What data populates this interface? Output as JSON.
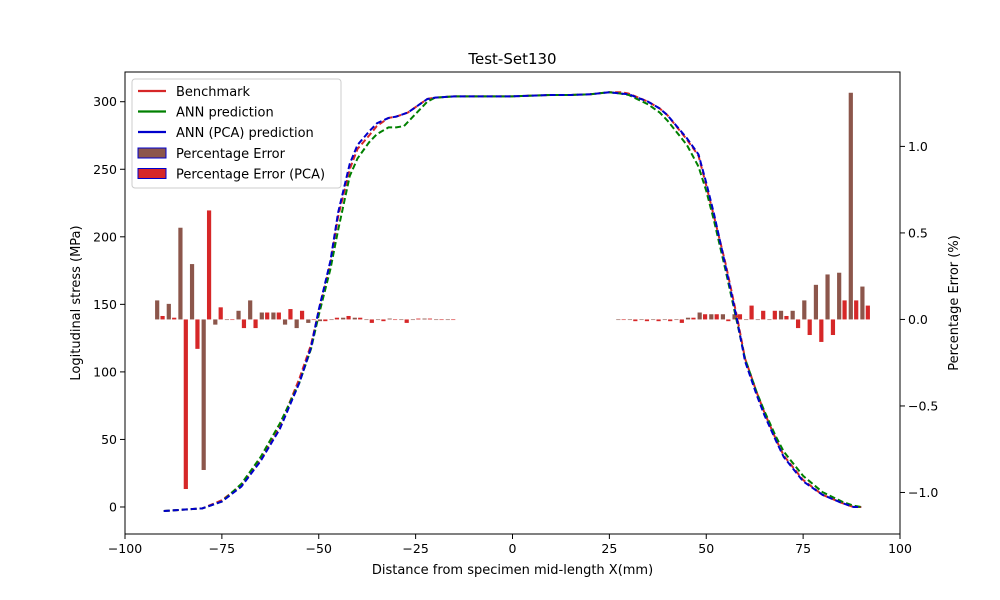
{
  "chart_data": {
    "type": "line",
    "title": "Test-Set130",
    "xlabel": "Distance from specimen mid-length X(mm)",
    "ylabel": "Logitudinal stress (MPa)",
    "y2label": "Percentage Error (%)",
    "xlim": [
      -100,
      100
    ],
    "ylim": [
      -20,
      322
    ],
    "y2lim": [
      -1.24,
      1.43
    ],
    "grid": false,
    "legend_position": "upper-left",
    "x_ticks": [
      -100,
      -75,
      -50,
      -25,
      0,
      25,
      50,
      75,
      100
    ],
    "y_ticks": [
      0,
      50,
      100,
      150,
      200,
      250,
      300
    ],
    "y2_ticks": [
      -1.0,
      -0.5,
      0.0,
      0.5,
      1.0
    ],
    "x_tick_labels": [
      "−100",
      "−75",
      "−50",
      "−25",
      "0",
      "25",
      "50",
      "75",
      "100"
    ],
    "y_tick_labels": [
      "0",
      "50",
      "100",
      "150",
      "200",
      "250",
      "300"
    ],
    "y2_tick_labels": [
      "−1.0",
      "−0.5",
      "0.0",
      "0.5",
      "1.0"
    ],
    "colors": {
      "benchmark": "#d62728",
      "ann": "#008000",
      "ann_pca": "#0000cc",
      "err_fill": "#8c564b",
      "err_pca_fill": "#d62728",
      "err_pca_edge": "#0000cc"
    },
    "series": [
      {
        "name": "Benchmark",
        "color": "#d62728",
        "points": [
          [
            -90,
            -3
          ],
          [
            -85,
            -2
          ],
          [
            -80,
            -1
          ],
          [
            -75,
            5
          ],
          [
            -70,
            16
          ],
          [
            -65,
            35
          ],
          [
            -60,
            60
          ],
          [
            -55,
            95
          ],
          [
            -52,
            120
          ],
          [
            -50,
            145
          ],
          [
            -47,
            180
          ],
          [
            -45,
            215
          ],
          [
            -42,
            250
          ],
          [
            -40,
            265
          ],
          [
            -37,
            275
          ],
          [
            -35,
            282
          ],
          [
            -32,
            288
          ],
          [
            -30,
            289
          ],
          [
            -27,
            292
          ],
          [
            -25,
            296
          ],
          [
            -22,
            302
          ],
          [
            -20,
            303
          ],
          [
            -15,
            304
          ],
          [
            -10,
            304
          ],
          [
            0,
            304
          ],
          [
            10,
            305
          ],
          [
            15,
            305
          ],
          [
            20,
            305.5
          ],
          [
            25,
            307
          ],
          [
            28,
            307
          ],
          [
            30,
            306
          ],
          [
            35,
            300
          ],
          [
            38,
            295
          ],
          [
            40,
            290
          ],
          [
            45,
            272
          ],
          [
            48,
            260
          ],
          [
            50,
            238
          ],
          [
            52,
            215
          ],
          [
            55,
            180
          ],
          [
            58,
            140
          ],
          [
            60,
            110
          ],
          [
            63,
            85
          ],
          [
            65,
            70
          ],
          [
            68,
            50
          ],
          [
            70,
            38
          ],
          [
            75,
            20
          ],
          [
            80,
            9
          ],
          [
            85,
            3
          ],
          [
            88,
            0
          ],
          [
            90,
            0
          ]
        ]
      },
      {
        "name": "ANN prediction",
        "color": "#008000",
        "points": [
          [
            -90,
            -3
          ],
          [
            -85,
            -2
          ],
          [
            -80,
            -1
          ],
          [
            -75,
            4
          ],
          [
            -70,
            17
          ],
          [
            -65,
            37
          ],
          [
            -60,
            62
          ],
          [
            -55,
            92
          ],
          [
            -52,
            117
          ],
          [
            -50,
            142
          ],
          [
            -47,
            176
          ],
          [
            -45,
            205
          ],
          [
            -42,
            245
          ],
          [
            -40,
            258
          ],
          [
            -37,
            270
          ],
          [
            -35,
            276
          ],
          [
            -32,
            281
          ],
          [
            -30,
            281
          ],
          [
            -28,
            282
          ],
          [
            -25,
            291
          ],
          [
            -22,
            300
          ],
          [
            -20,
            303
          ],
          [
            -15,
            304
          ],
          [
            -10,
            304
          ],
          [
            0,
            304
          ],
          [
            10,
            305
          ],
          [
            15,
            305
          ],
          [
            20,
            305.5
          ],
          [
            25,
            307
          ],
          [
            28,
            306
          ],
          [
            30,
            305
          ],
          [
            35,
            298
          ],
          [
            38,
            292
          ],
          [
            40,
            286
          ],
          [
            45,
            268
          ],
          [
            48,
            252
          ],
          [
            50,
            234
          ],
          [
            52,
            212
          ],
          [
            55,
            175
          ],
          [
            58,
            136
          ],
          [
            60,
            110
          ],
          [
            63,
            85
          ],
          [
            65,
            71
          ],
          [
            68,
            52
          ],
          [
            70,
            41
          ],
          [
            75,
            23
          ],
          [
            80,
            11
          ],
          [
            85,
            4
          ],
          [
            88,
            1
          ],
          [
            90,
            0
          ]
        ]
      },
      {
        "name": "ANN (PCA) prediction",
        "color": "#0000cc",
        "points": [
          [
            -90,
            -3
          ],
          [
            -85,
            -2
          ],
          [
            -80,
            -1
          ],
          [
            -75,
            4
          ],
          [
            -70,
            15
          ],
          [
            -65,
            34
          ],
          [
            -60,
            58
          ],
          [
            -55,
            92
          ],
          [
            -52,
            118
          ],
          [
            -50,
            146
          ],
          [
            -47,
            182
          ],
          [
            -45,
            218
          ],
          [
            -42,
            254
          ],
          [
            -40,
            268
          ],
          [
            -37,
            278
          ],
          [
            -35,
            284
          ],
          [
            -32,
            288
          ],
          [
            -30,
            289
          ],
          [
            -27,
            292
          ],
          [
            -25,
            296
          ],
          [
            -22,
            302
          ],
          [
            -20,
            303
          ],
          [
            -15,
            304
          ],
          [
            -10,
            304
          ],
          [
            0,
            304
          ],
          [
            10,
            305
          ],
          [
            15,
            305
          ],
          [
            20,
            305.5
          ],
          [
            25,
            307
          ],
          [
            28,
            306
          ],
          [
            30,
            305.5
          ],
          [
            35,
            300
          ],
          [
            38,
            295
          ],
          [
            40,
            290
          ],
          [
            45,
            273
          ],
          [
            48,
            261
          ],
          [
            50,
            240
          ],
          [
            52,
            217
          ],
          [
            55,
            178
          ],
          [
            58,
            138
          ],
          [
            60,
            108
          ],
          [
            63,
            83
          ],
          [
            65,
            68
          ],
          [
            68,
            49
          ],
          [
            70,
            37
          ],
          [
            75,
            19
          ],
          [
            80,
            9
          ],
          [
            85,
            3
          ],
          [
            88,
            0
          ],
          [
            90,
            0
          ]
        ]
      }
    ],
    "error_series": [
      {
        "name": "Percentage Error",
        "color": "#8c564b",
        "values": [
          [
            -91,
            0.11
          ],
          [
            -88,
            0.09
          ],
          [
            -85,
            0.53
          ],
          [
            -82,
            0.32
          ],
          [
            -79,
            -0.87
          ],
          [
            -76,
            -0.03
          ],
          [
            -73,
            0.0
          ],
          [
            -70,
            0.05
          ],
          [
            -67,
            0.11
          ],
          [
            -64,
            0.04
          ],
          [
            -61,
            0.04
          ],
          [
            -58,
            -0.03
          ],
          [
            -55,
            -0.05
          ],
          [
            -52,
            -0.02
          ],
          [
            -49,
            -0.01
          ],
          [
            -46,
            0.0
          ],
          [
            -43,
            0.01
          ],
          [
            -40,
            0.01
          ],
          [
            -37,
            0.0
          ],
          [
            -34,
            0.0
          ],
          [
            -31,
            0.005
          ],
          [
            -28,
            0.0
          ],
          [
            -25,
            0.0
          ],
          [
            -22,
            0.005
          ],
          [
            -19,
            0.0
          ],
          [
            -16,
            0.0
          ],
          [
            28,
            0.0
          ],
          [
            31,
            0.0
          ],
          [
            34,
            0.0
          ],
          [
            37,
            0.0
          ],
          [
            40,
            0.0
          ],
          [
            43,
            0.0
          ],
          [
            46,
            0.01
          ],
          [
            49,
            0.04
          ],
          [
            52,
            0.03
          ],
          [
            55,
            0.03
          ],
          [
            58,
            0.03
          ],
          [
            61,
            0.0
          ],
          [
            64,
            0.0
          ],
          [
            67,
            0.0
          ],
          [
            70,
            0.05
          ],
          [
            73,
            0.05
          ],
          [
            76,
            0.11
          ],
          [
            79,
            0.2
          ],
          [
            82,
            0.26
          ],
          [
            85,
            0.27
          ],
          [
            88,
            1.31
          ],
          [
            91,
            0.19
          ]
        ]
      },
      {
        "name": "Percentage Error (PCA)",
        "color": "#d62728",
        "values": [
          [
            -91,
            0.02
          ],
          [
            -88,
            0.01
          ],
          [
            -85,
            -0.98
          ],
          [
            -82,
            -0.17
          ],
          [
            -79,
            0.63
          ],
          [
            -76,
            0.07
          ],
          [
            -73,
            0.0
          ],
          [
            -70,
            -0.05
          ],
          [
            -67,
            -0.05
          ],
          [
            -64,
            0.04
          ],
          [
            -61,
            0.04
          ],
          [
            -58,
            0.06
          ],
          [
            -55,
            0.05
          ],
          [
            -52,
            0.0
          ],
          [
            -49,
            -0.01
          ],
          [
            -46,
            0.01
          ],
          [
            -43,
            0.02
          ],
          [
            -40,
            0.01
          ],
          [
            -37,
            -0.02
          ],
          [
            -34,
            -0.01
          ],
          [
            -31,
            0.0
          ],
          [
            -28,
            -0.02
          ],
          [
            -25,
            0.005
          ],
          [
            -22,
            0.005
          ],
          [
            -19,
            0.0
          ],
          [
            -16,
            0.0
          ],
          [
            28,
            0.0
          ],
          [
            31,
            -0.01
          ],
          [
            34,
            -0.01
          ],
          [
            37,
            -0.01
          ],
          [
            40,
            -0.01
          ],
          [
            43,
            -0.02
          ],
          [
            46,
            0.01
          ],
          [
            49,
            0.03
          ],
          [
            52,
            0.03
          ],
          [
            55,
            -0.01
          ],
          [
            58,
            0.03
          ],
          [
            61,
            0.08
          ],
          [
            64,
            0.05
          ],
          [
            67,
            0.05
          ],
          [
            70,
            0.02
          ],
          [
            73,
            -0.05
          ],
          [
            76,
            -0.09
          ],
          [
            79,
            -0.13
          ],
          [
            82,
            -0.09
          ],
          [
            85,
            0.11
          ],
          [
            88,
            0.11
          ],
          [
            91,
            0.08
          ]
        ]
      }
    ]
  }
}
